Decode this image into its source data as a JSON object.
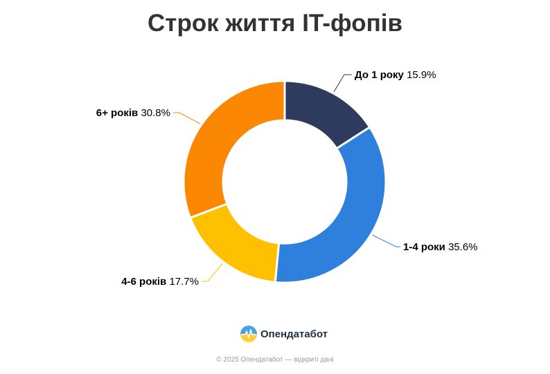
{
  "title": "Строк життя IT-фопів",
  "chart_data": {
    "type": "pie",
    "donut": true,
    "title": "Строк життя IT-фопів",
    "series": [
      {
        "name": "До 1 року",
        "value": 15.9,
        "label": "15.9%",
        "color": "#2e3b5e"
      },
      {
        "name": "1-4 роки",
        "value": 35.6,
        "label": "35.6%",
        "color": "#2e80dc"
      },
      {
        "name": "4-6 років",
        "value": 17.7,
        "label": "17.7%",
        "color": "#ffc000"
      },
      {
        "name": "6+ років",
        "value": 30.8,
        "label": "30.8%",
        "color": "#fb8702"
      }
    ]
  },
  "brand": {
    "name": "Опендатабот",
    "logo_icon": "opendatabot-logo-icon"
  },
  "footer": "© 2025 Опендатабот — відкриті дані"
}
